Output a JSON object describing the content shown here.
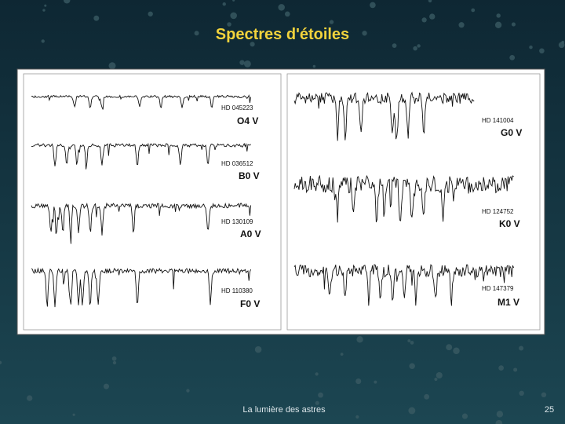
{
  "title": "Spectres d'étoiles",
  "figure": {
    "spectra": [
      {
        "hd": "HD 045223",
        "type": "O4 V"
      },
      {
        "hd": "HD 036512",
        "type": "B0 V"
      },
      {
        "hd": "HD 130109",
        "type": "A0 V"
      },
      {
        "hd": "HD 110380",
        "type": "F0 V"
      },
      {
        "hd": "HD 141004",
        "type": "G0 V"
      },
      {
        "hd": "HD 124752",
        "type": "K0 V"
      },
      {
        "hd": "HD 147379",
        "type": "M1 V"
      }
    ]
  },
  "footer": {
    "text": "La lumière des astres",
    "page": "25"
  }
}
